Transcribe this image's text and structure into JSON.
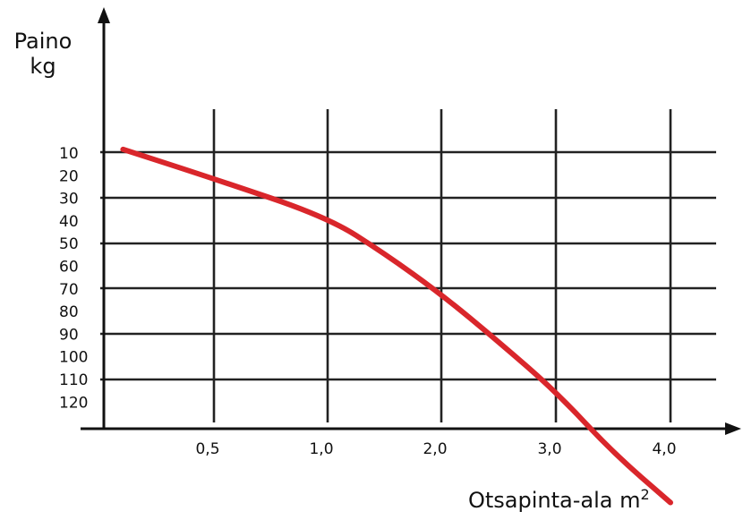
{
  "chart_data": {
    "type": "line",
    "ylabel_line1": "Paino",
    "ylabel_line2": "kg",
    "xlabel_text": "Otsapinta-ala m",
    "xlabel_sup": "2",
    "x_ticks": [
      "0,5",
      "1,0",
      "2,0",
      "3,0",
      "4,0"
    ],
    "y_ticks": [
      "10",
      "20",
      "30",
      "40",
      "50",
      "60",
      "70",
      "80",
      "90",
      "100",
      "110",
      "120"
    ],
    "series": [
      {
        "color": "#d9262b",
        "points": [
          {
            "x": 0.1,
            "y": 6
          },
          {
            "x": 0.5,
            "y": 19
          },
          {
            "x": 1.0,
            "y": 36
          },
          {
            "x": 1.5,
            "y": 52
          },
          {
            "x": 2.0,
            "y": 70
          },
          {
            "x": 2.5,
            "y": 91
          },
          {
            "x": 3.0,
            "y": 113
          },
          {
            "x": 3.5,
            "y": 140
          },
          {
            "x": 4.0,
            "y": 162
          }
        ]
      }
    ]
  }
}
